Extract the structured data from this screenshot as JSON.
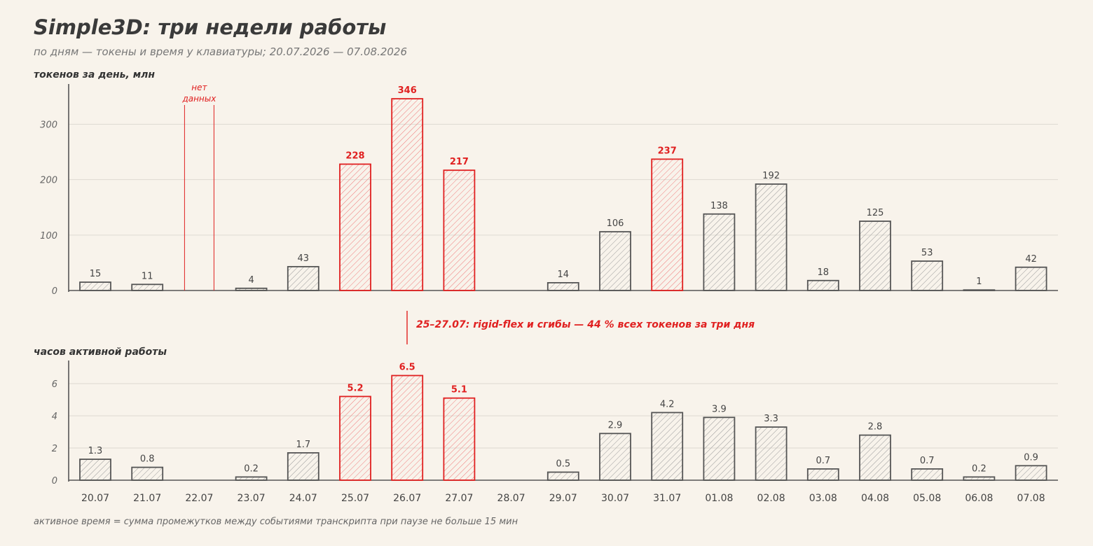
{
  "title": "Simple3D: три недели работы",
  "subtitle": "по дням — токены и время у клавиатуры; 20.07.2026 — 07.08.2026",
  "footnote": "активное время = сумма промежутков между событиями транскрипта при паузе не больше 15 мин",
  "colors": {
    "background": "#f8f3eb",
    "normal": "#555555",
    "highlight": "#e02020",
    "grid": "#dedad2"
  },
  "chart_data": [
    {
      "type": "bar",
      "ylabel": "токенов за день, млн",
      "ylim": [
        0,
        360
      ],
      "yticks": [
        0,
        100,
        200,
        300
      ],
      "grid": true,
      "categories": [
        "20.07",
        "21.07",
        "22.07",
        "23.07",
        "24.07",
        "25.07",
        "26.07",
        "27.07",
        "28.07",
        "29.07",
        "30.07",
        "31.07",
        "01.08",
        "02.08",
        "03.08",
        "04.08",
        "05.08",
        "06.08",
        "07.08"
      ],
      "values": [
        15,
        11,
        null,
        4,
        43,
        228,
        346,
        217,
        0,
        14,
        106,
        237,
        138,
        192,
        18,
        125,
        53,
        1,
        42
      ],
      "highlighted": [
        "25.07",
        "26.07",
        "27.07",
        "31.07"
      ],
      "annotations": [
        {
          "category": "22.07",
          "text": "нет данных"
        }
      ]
    },
    {
      "type": "bar",
      "ylabel": "часов активной работы",
      "ylim": [
        0,
        7
      ],
      "yticks": [
        0,
        2,
        4,
        6
      ],
      "grid": true,
      "categories": [
        "20.07",
        "21.07",
        "22.07",
        "23.07",
        "24.07",
        "25.07",
        "26.07",
        "27.07",
        "28.07",
        "29.07",
        "30.07",
        "31.07",
        "01.08",
        "02.08",
        "03.08",
        "04.08",
        "05.08",
        "06.08",
        "07.08"
      ],
      "values": [
        1.3,
        0.8,
        null,
        0.2,
        1.7,
        5.2,
        6.5,
        5.1,
        0,
        0.5,
        2.9,
        4.2,
        3.9,
        3.3,
        0.7,
        2.8,
        0.7,
        0.2,
        0.9
      ],
      "highlighted": [
        "25.07",
        "26.07",
        "27.07"
      ]
    }
  ],
  "callout": "25–27.07: rigid-flex и сгибы — 44 % всех токенов за три дня"
}
